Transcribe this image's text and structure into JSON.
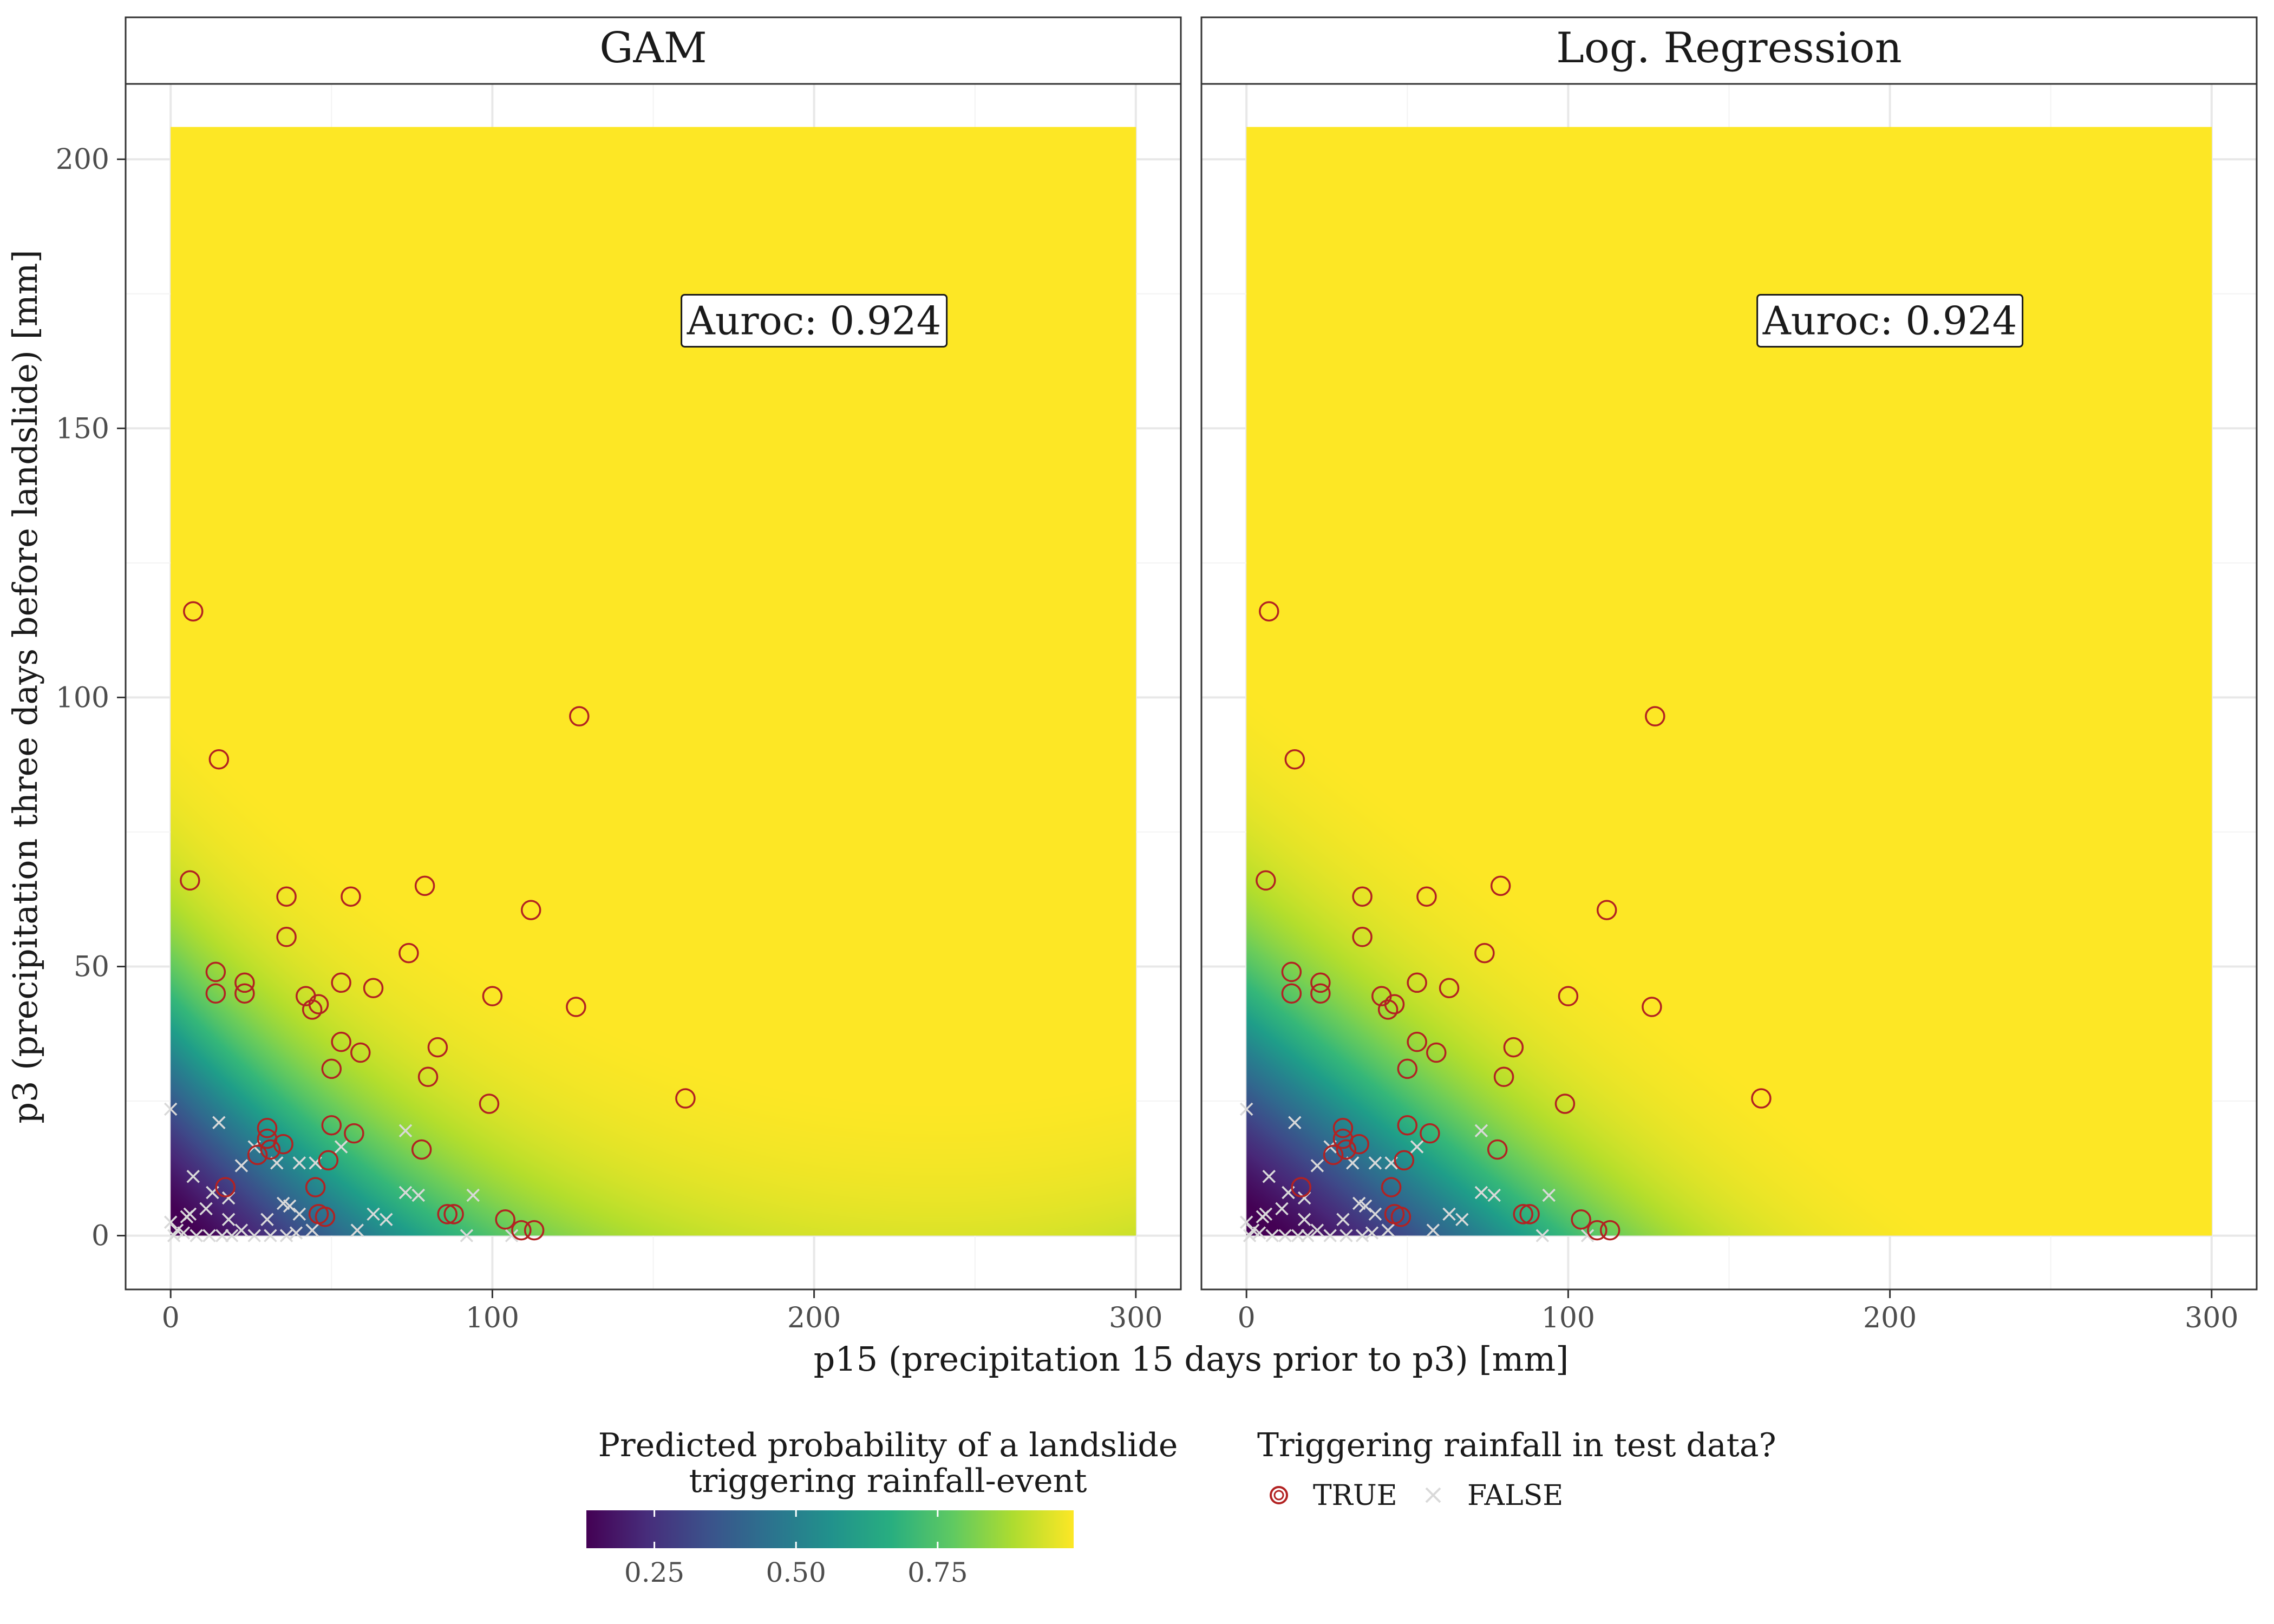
{
  "chart_data": {
    "type": "heatmap",
    "facets": [
      {
        "name": "GAM",
        "auroc_label": "Auroc: 0.924",
        "model": "gam"
      },
      {
        "name": "Log. Regression",
        "auroc_label": "Auroc: 0.924",
        "model": "logreg"
      }
    ],
    "xlabel": "p15 (precipitation 15 days prior to p3) [mm]",
    "ylabel": "p3 (precipitation three days before landslide) [mm]",
    "xlim": [
      -14,
      314
    ],
    "ylim": [
      -10,
      214
    ],
    "xticks": [
      0,
      100,
      200,
      300
    ],
    "yticks": [
      0,
      50,
      100,
      150,
      200
    ],
    "grid": true,
    "prediction_grid": {
      "x_range": [
        0,
        300
      ],
      "y_range": [
        0,
        206
      ]
    },
    "colorbar": {
      "title_line1": "Predicted probability of a landslide",
      "title_line2": "triggering rainfall-event",
      "range": [
        0.13,
        0.99
      ],
      "ticks": [
        0.25,
        0.5,
        0.75
      ],
      "tick_labels": [
        "0.25",
        "0.50",
        "0.75"
      ]
    },
    "legend": {
      "title": "Triggering rainfall in test data?",
      "items": [
        {
          "label": "TRUE",
          "symbol": "circle",
          "color": "#b22222"
        },
        {
          "label": "FALSE",
          "symbol": "cross",
          "color": "#d9d9d9"
        }
      ],
      "placement": "bottom"
    },
    "points_true": [
      [
        7,
        116
      ],
      [
        15,
        88.5
      ],
      [
        127,
        96.5
      ],
      [
        6,
        66
      ],
      [
        36,
        63
      ],
      [
        56,
        63
      ],
      [
        79,
        65
      ],
      [
        112,
        60.5
      ],
      [
        36,
        55.5
      ],
      [
        14,
        49
      ],
      [
        14,
        45
      ],
      [
        23,
        47
      ],
      [
        23,
        45
      ],
      [
        74,
        52.5
      ],
      [
        63,
        46
      ],
      [
        42,
        44.5
      ],
      [
        46,
        43
      ],
      [
        44,
        42
      ],
      [
        53,
        47
      ],
      [
        100,
        44.5
      ],
      [
        126,
        42.5
      ],
      [
        53,
        36
      ],
      [
        59,
        34
      ],
      [
        50,
        31
      ],
      [
        80,
        29.5
      ],
      [
        83,
        35
      ],
      [
        160,
        25.5
      ],
      [
        99,
        24.5
      ],
      [
        30,
        20
      ],
      [
        30,
        18
      ],
      [
        35,
        17
      ],
      [
        27,
        15
      ],
      [
        31,
        16
      ],
      [
        50,
        20.5
      ],
      [
        57,
        19
      ],
      [
        78,
        16
      ],
      [
        49,
        14
      ],
      [
        17,
        9
      ],
      [
        45,
        9
      ],
      [
        46,
        4
      ],
      [
        48,
        3.5
      ],
      [
        86,
        4
      ],
      [
        88,
        4
      ],
      [
        104,
        3
      ],
      [
        109,
        1
      ],
      [
        113,
        1
      ]
    ],
    "points_false": [
      [
        0,
        23.5
      ],
      [
        15,
        21
      ],
      [
        73,
        19.5
      ],
      [
        26,
        16.5
      ],
      [
        33,
        13.5
      ],
      [
        22,
        13
      ],
      [
        40,
        13.5
      ],
      [
        45,
        13.5
      ],
      [
        53,
        16.5
      ],
      [
        7,
        11
      ],
      [
        13,
        8
      ],
      [
        73,
        8
      ],
      [
        77,
        7.5
      ],
      [
        94,
        7.5
      ],
      [
        18,
        7
      ],
      [
        35,
        6
      ],
      [
        37,
        5.5
      ],
      [
        6,
        4
      ],
      [
        5,
        3.5
      ],
      [
        11,
        5
      ],
      [
        18,
        3
      ],
      [
        30,
        3
      ],
      [
        40,
        4
      ],
      [
        63,
        4
      ],
      [
        67,
        3
      ],
      [
        0,
        2.5
      ],
      [
        2,
        1
      ],
      [
        4,
        0.5
      ],
      [
        8,
        0
      ],
      [
        12,
        0
      ],
      [
        16,
        0
      ],
      [
        19,
        0
      ],
      [
        22,
        1
      ],
      [
        26,
        0
      ],
      [
        31,
        0
      ],
      [
        36,
        0
      ],
      [
        39,
        0.5
      ],
      [
        44,
        1
      ],
      [
        58,
        1
      ],
      [
        92,
        0
      ],
      [
        106,
        0
      ],
      [
        1,
        0
      ]
    ]
  }
}
